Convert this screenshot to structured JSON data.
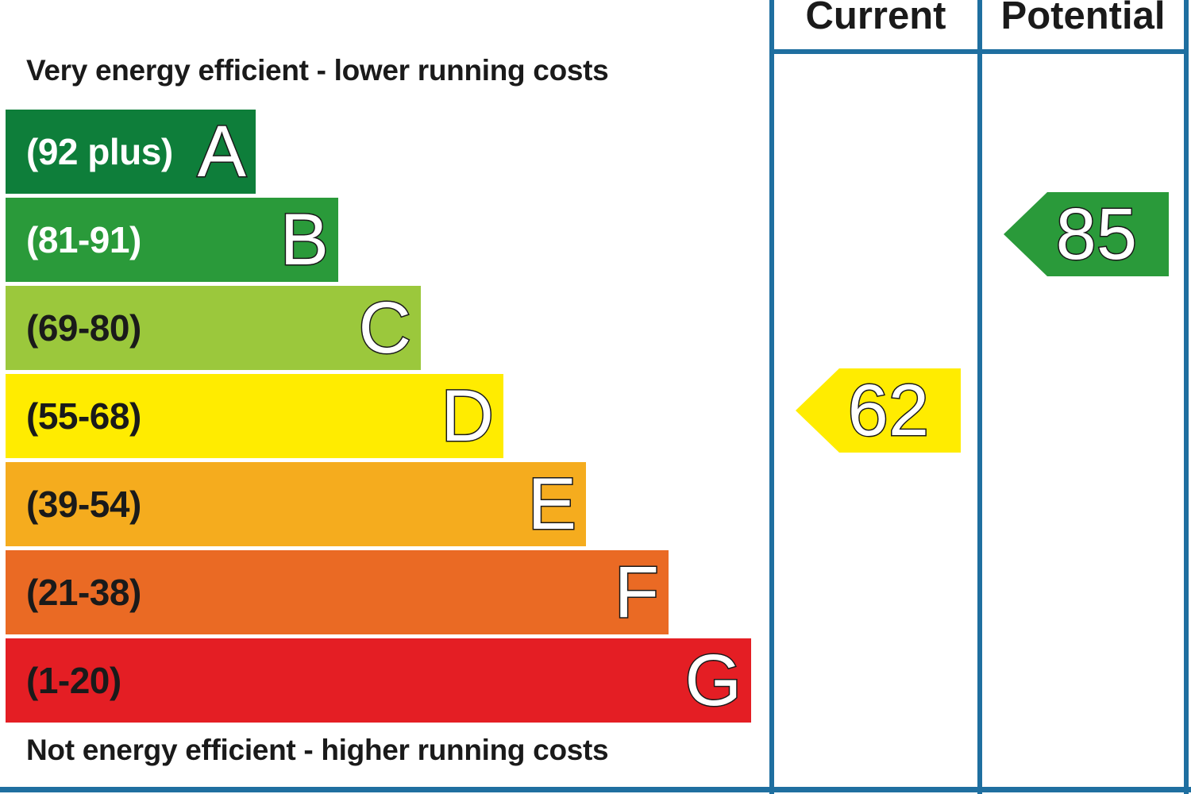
{
  "chart_data": {
    "type": "bar",
    "top_caption": "Very energy efficient - lower running costs",
    "bottom_caption": "Not energy efficient - higher running costs",
    "columns": [
      "Current",
      "Potential"
    ],
    "bands": [
      {
        "letter": "A",
        "range": "(92 plus)",
        "min": 92,
        "max": 100,
        "color": "#0e7e3a",
        "range_color": "#ffffff"
      },
      {
        "letter": "B",
        "range": "(81-91)",
        "min": 81,
        "max": 91,
        "color": "#2a9a3a",
        "range_color": "#ffffff"
      },
      {
        "letter": "C",
        "range": "(69-80)",
        "min": 69,
        "max": 80,
        "color": "#9bc83c",
        "range_color": "#1a1a1a"
      },
      {
        "letter": "D",
        "range": "(55-68)",
        "min": 55,
        "max": 68,
        "color": "#ffec00",
        "range_color": "#1a1a1a"
      },
      {
        "letter": "E",
        "range": "(39-54)",
        "min": 39,
        "max": 54,
        "color": "#f5ac1e",
        "range_color": "#1a1a1a"
      },
      {
        "letter": "F",
        "range": "(21-38)",
        "min": 21,
        "max": 38,
        "color": "#ea6a24",
        "range_color": "#1a1a1a"
      },
      {
        "letter": "G",
        "range": "(1-20)",
        "min": 1,
        "max": 20,
        "color": "#e41e24",
        "range_color": "#1a1a1a"
      }
    ],
    "ratings": [
      {
        "column": "Current",
        "value": 62,
        "band": "D",
        "color": "#ffec00"
      },
      {
        "column": "Potential",
        "value": 85,
        "band": "B",
        "color": "#2a9a3a"
      }
    ]
  }
}
